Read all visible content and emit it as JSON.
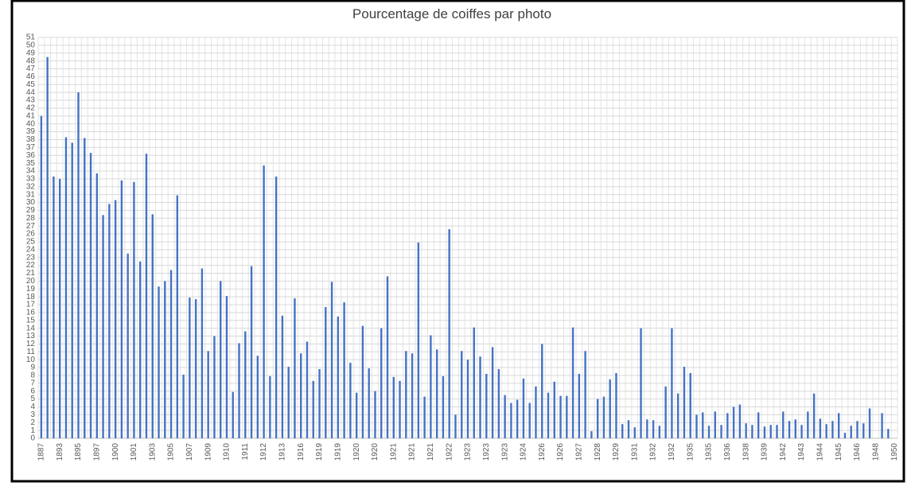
{
  "chart_data": {
    "type": "bar",
    "title": "Pourcentage de coiffes par photo",
    "categories": [
      "1887",
      null,
      null,
      "1893",
      null,
      null,
      "1895",
      null,
      null,
      "1897",
      null,
      null,
      "1900",
      null,
      null,
      "1901",
      null,
      null,
      "1903",
      null,
      null,
      "1905",
      null,
      null,
      "1907",
      null,
      null,
      "1909",
      null,
      null,
      "1910",
      null,
      null,
      "1911",
      null,
      null,
      "1912",
      null,
      null,
      "1913",
      null,
      null,
      "1916",
      null,
      null,
      "1919",
      null,
      null,
      "1919",
      null,
      null,
      "1920",
      null,
      null,
      "1920",
      null,
      null,
      "1921",
      null,
      null,
      "1921",
      null,
      null,
      "1921",
      null,
      null,
      "1922",
      null,
      null,
      "1923",
      null,
      null,
      "1923",
      null,
      null,
      "1923",
      null,
      null,
      "1924",
      null,
      null,
      "1926",
      null,
      null,
      "1926",
      null,
      null,
      "1927",
      null,
      null,
      "1928",
      null,
      null,
      "1929",
      null,
      null,
      "1931",
      null,
      null,
      "1932",
      null,
      null,
      "1932",
      null,
      null,
      "1935",
      null,
      null,
      "1935",
      null,
      null,
      "1936",
      null,
      null,
      "1938",
      null,
      null,
      "1939",
      null,
      null,
      "1942",
      null,
      null,
      "1943",
      null,
      null,
      "1944",
      null,
      null,
      "1945",
      null,
      null,
      "1946",
      null,
      null,
      "1948",
      null,
      null,
      "1950"
    ],
    "values": [
      41,
      48.5,
      33.3,
      33,
      38.3,
      37.6,
      44,
      38.2,
      36.3,
      33.7,
      28.4,
      29.8,
      30.3,
      32.8,
      23.5,
      32.6,
      22.5,
      36.2,
      28.5,
      19.3,
      20,
      21.4,
      30.9,
      8.1,
      17.9,
      17.7,
      21.6,
      11.1,
      13,
      20,
      18.1,
      5.9,
      12.1,
      13.6,
      21.9,
      10.5,
      34.7,
      7.9,
      33.3,
      15.6,
      9.1,
      17.8,
      10.8,
      12.3,
      7.3,
      8.8,
      16.7,
      19.9,
      15.5,
      17.3,
      9.6,
      5.8,
      14.3,
      8.9,
      6,
      14,
      20.6,
      7.8,
      7.3,
      11.1,
      10.8,
      24.9,
      5.3,
      13.1,
      11.3,
      7.9,
      26.6,
      3,
      11.1,
      10,
      14.1,
      10.4,
      8.2,
      11.6,
      8.8,
      5.5,
      4.5,
      4.9,
      7.6,
      4.5,
      6.6,
      12,
      5.8,
      7.2,
      5.4,
      5.4,
      14.1,
      8.2,
      11.1,
      0.9,
      5,
      5.3,
      7.5,
      8.3,
      1.8,
      2.3,
      1.4,
      14,
      2.4,
      2.3,
      1.6,
      6.6,
      14,
      5.7,
      9.1,
      8.3,
      3,
      3.3,
      1.6,
      3.4,
      1.7,
      3.2,
      4,
      4.3,
      1.9,
      1.7,
      3.3,
      1.5,
      1.7,
      1.7,
      3.4,
      2.2,
      2.4,
      1.7,
      3.4,
      5.7,
      2.5,
      1.8,
      2.2,
      3.2,
      0.7,
      1.6,
      2.2,
      1.9,
      3.8,
      null,
      3.2,
      1.2,
      null
    ],
    "color": "#4472c4",
    "ylim": [
      0,
      51
    ],
    "yticks": [
      0,
      1,
      2,
      3,
      4,
      5,
      6,
      7,
      8,
      9,
      10,
      11,
      12,
      13,
      14,
      15,
      16,
      17,
      18,
      19,
      20,
      21,
      22,
      23,
      24,
      25,
      26,
      27,
      28,
      29,
      30,
      31,
      32,
      33,
      34,
      35,
      36,
      37,
      38,
      39,
      40,
      41,
      42,
      43,
      44,
      45,
      46,
      47,
      48,
      49,
      50,
      51
    ],
    "grid": true
  }
}
